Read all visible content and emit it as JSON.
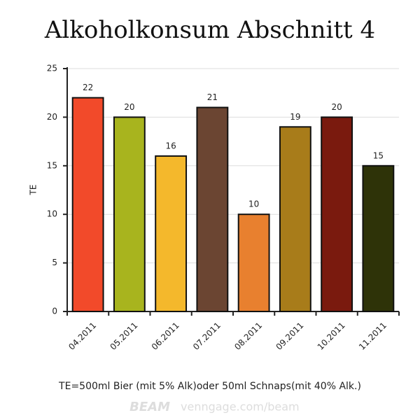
{
  "chart_data": {
    "type": "bar",
    "title": "Alkoholkonsum Abschnitt 4",
    "categories": [
      "04.2011",
      "05.2011",
      "06.2011",
      "07.2011",
      "08.2011",
      "09.2011",
      "10.2011",
      "11.2011"
    ],
    "values": [
      22,
      20,
      16,
      21,
      10,
      19,
      20,
      15
    ],
    "colors": [
      "#f24a2a",
      "#a8b41e",
      "#f4b82c",
      "#6b4532",
      "#e8802f",
      "#a87c1a",
      "#7a1a0e",
      "#2e3308"
    ],
    "y_label": "TE",
    "ylim": [
      0,
      25
    ],
    "yticks": [
      0,
      5,
      10,
      15,
      20,
      25
    ],
    "grid": true,
    "note": "TE=500ml Bier (mit 5% Alk)oder 50ml Schnaps(mit 40% Alk.)",
    "watermark": {
      "brand": "BEAM",
      "url": "venngage.com/beam"
    }
  }
}
